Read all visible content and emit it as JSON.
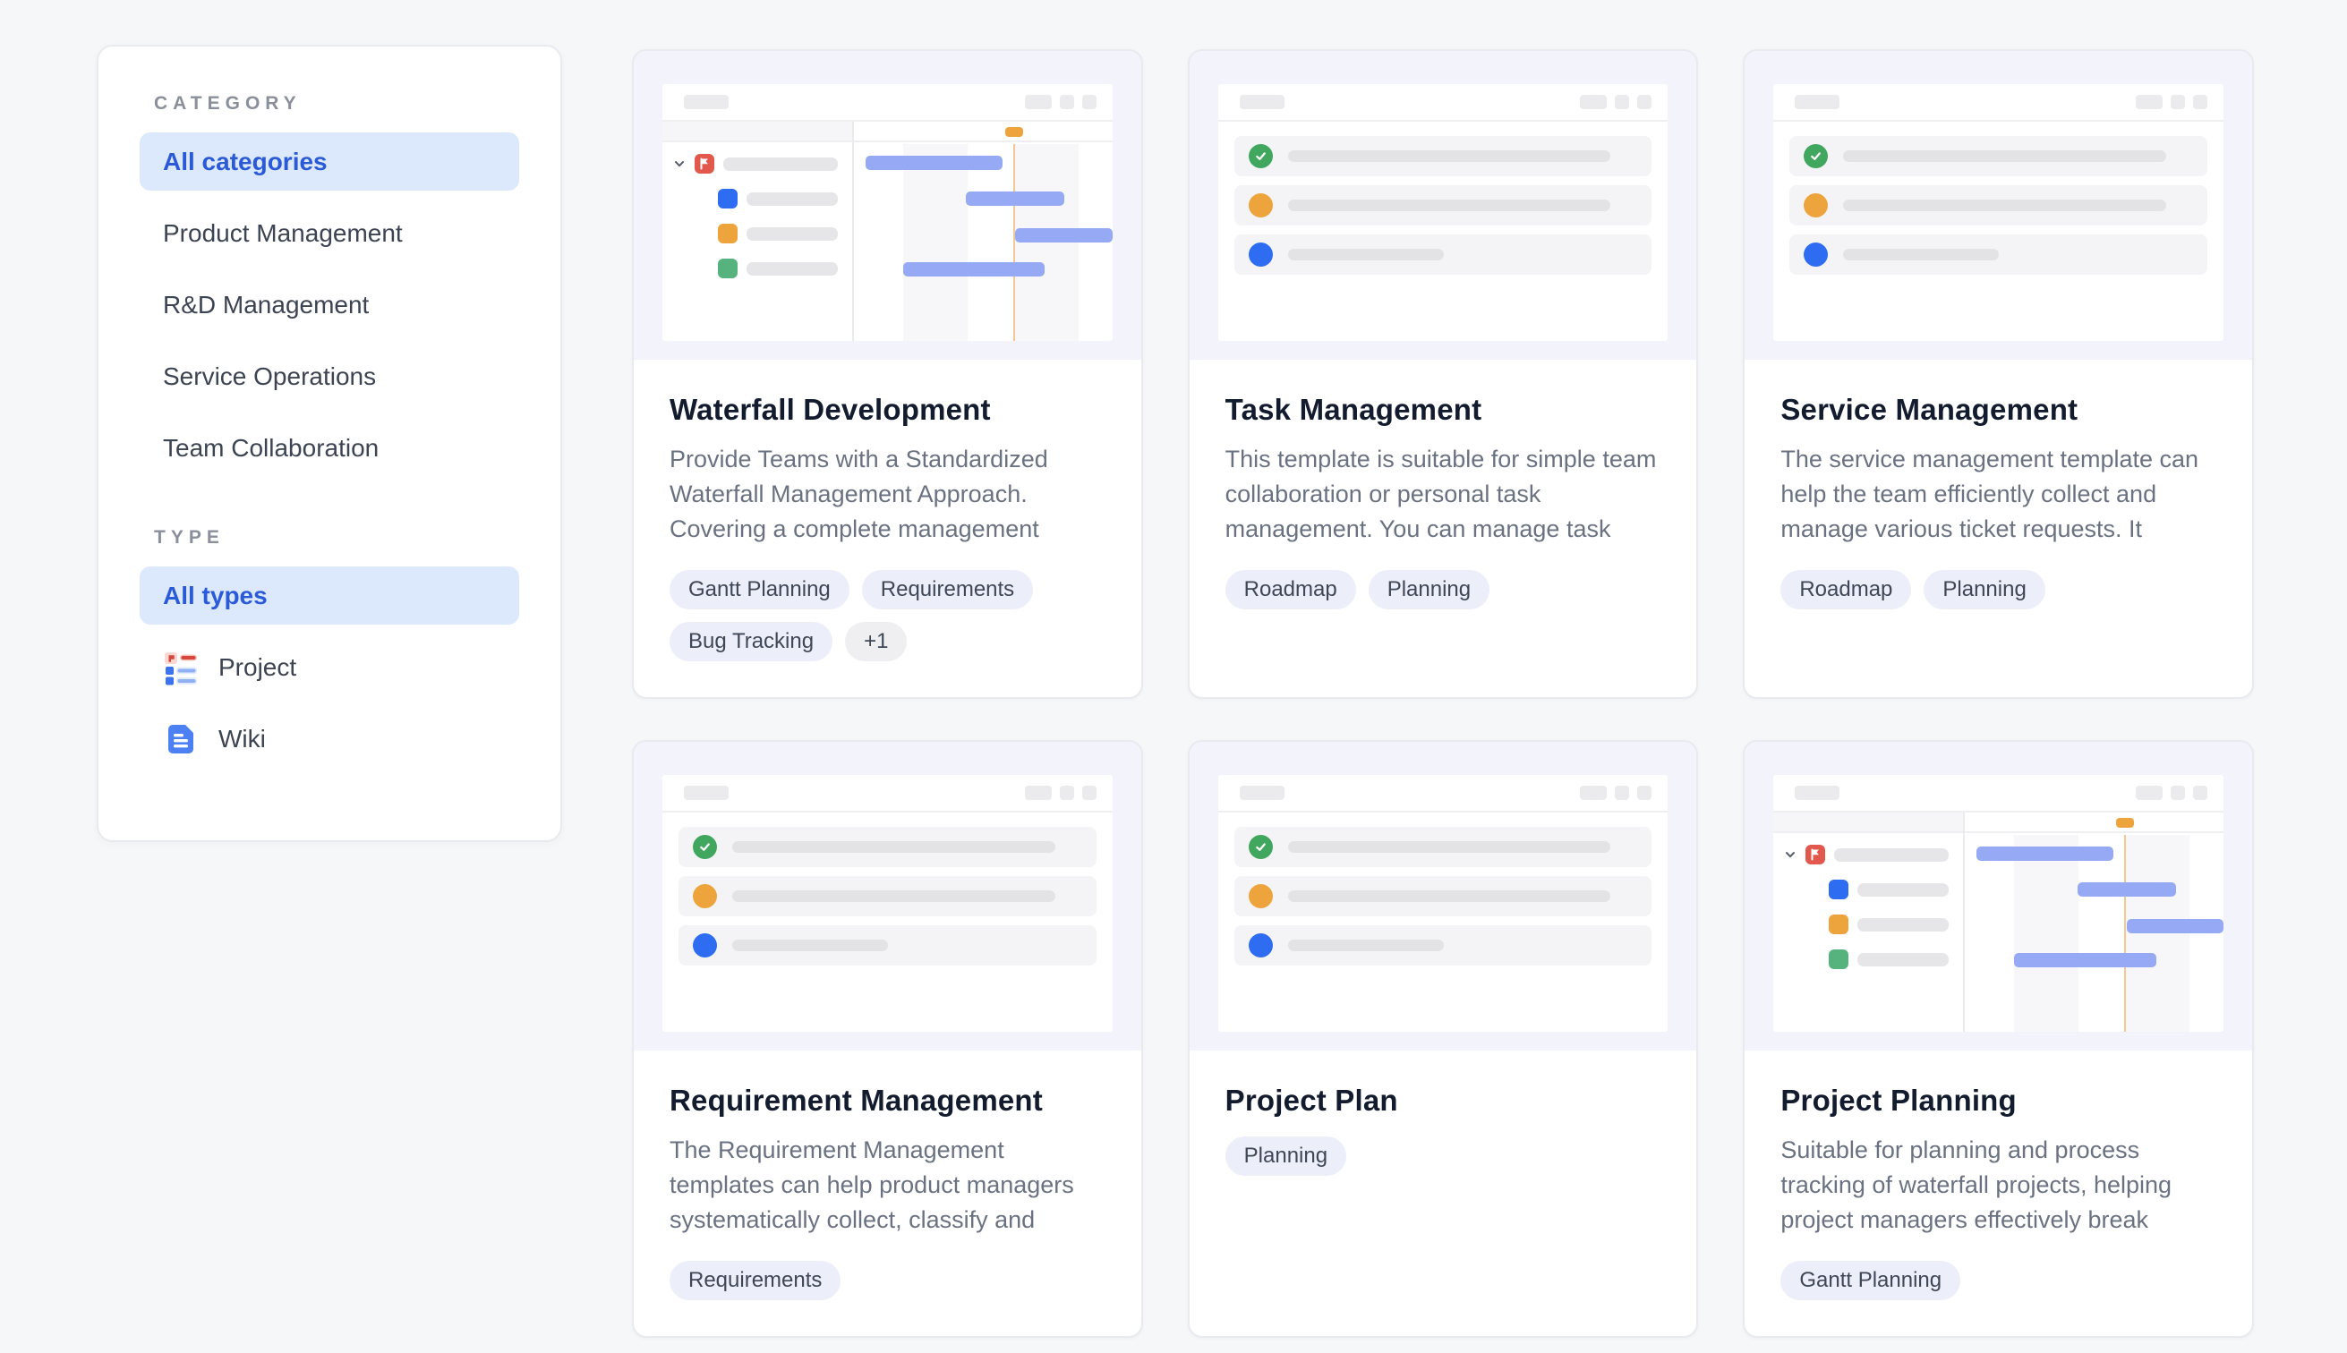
{
  "sidebar": {
    "category": {
      "label": "CATEGORY",
      "selected": "All categories",
      "items": [
        "All categories",
        "Product Management",
        "R&D Management",
        "Service Operations",
        "Team Collaboration"
      ]
    },
    "type": {
      "label": "TYPE",
      "selected": "All types",
      "items": [
        {
          "label": "All types",
          "icon": null
        },
        {
          "label": "Project",
          "icon": "project"
        },
        {
          "label": "Wiki",
          "icon": "wiki"
        }
      ]
    }
  },
  "cards": [
    {
      "title": "Waterfall Development",
      "description": "Provide Teams with a Standardized Waterfall Management Approach. Covering a complete management",
      "tags": [
        "Gantt Planning",
        "Requirements",
        "Bug Tracking"
      ],
      "more_tag": "+1",
      "thumbnail": "gantt"
    },
    {
      "title": "Task Management",
      "description": "This template is suitable for simple team collaboration or personal task management. You can manage task",
      "tags": [
        "Roadmap",
        "Planning"
      ],
      "more_tag": null,
      "thumbnail": "tasklist"
    },
    {
      "title": "Service Management",
      "description": "The service management template can help the team efficiently collect and manage various ticket requests. It",
      "tags": [
        "Roadmap",
        "Planning"
      ],
      "more_tag": null,
      "thumbnail": "tasklist"
    },
    {
      "title": "Requirement Management",
      "description": "The Requirement Management templates can help product managers systematically collect, classify and",
      "tags": [
        "Requirements"
      ],
      "more_tag": null,
      "thumbnail": "tasklist"
    },
    {
      "title": "Project Plan",
      "description": "",
      "tags": [
        "Planning"
      ],
      "more_tag": null,
      "thumbnail": "tasklist"
    },
    {
      "title": "Project Planning",
      "description": "Suitable for planning and process tracking of waterfall projects, helping project managers effectively break",
      "tags": [
        "Gantt Planning"
      ],
      "more_tag": null,
      "thumbnail": "gantt"
    }
  ],
  "colors": {
    "page-bg": "#f6f7f9",
    "sel-bg": "#dce8fc",
    "sel-text": "#2a5ad8",
    "thumb-bg": "#f2f3fb",
    "tag-bg": "#eceefa",
    "green": "#41a75f",
    "orange": "#eea43d",
    "blue": "#2e6cf2",
    "red": "#e2584c",
    "gantt-bar": "#95a9f4"
  }
}
